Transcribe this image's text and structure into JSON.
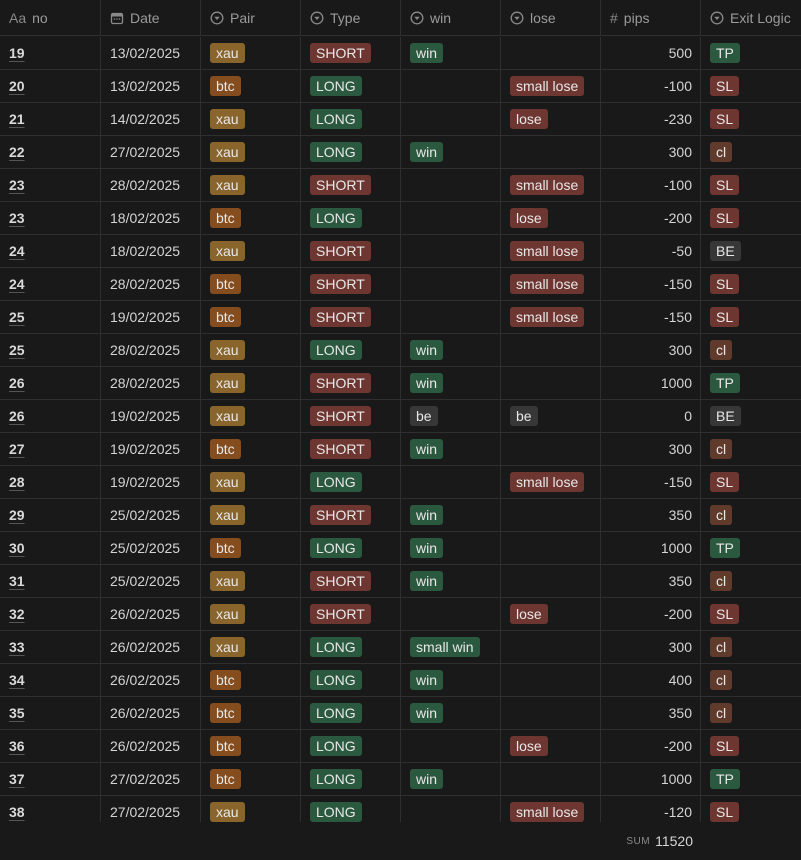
{
  "columns": [
    {
      "icon": "Aa",
      "name": "no"
    },
    {
      "name": "Date"
    },
    {
      "name": "Pair"
    },
    {
      "name": "Type"
    },
    {
      "name": "win"
    },
    {
      "name": "lose"
    },
    {
      "icon": "#",
      "name": "pips"
    },
    {
      "name": "Exit Logic"
    }
  ],
  "rows": [
    [
      "19",
      "13/02/2025",
      "xau",
      "SHORT",
      "win",
      null,
      500,
      "TP"
    ],
    [
      "20",
      "13/02/2025",
      "btc",
      "LONG",
      null,
      "small lose",
      -100,
      "SL"
    ],
    [
      "21",
      "14/02/2025",
      "xau",
      "LONG",
      null,
      "lose",
      -230,
      "SL"
    ],
    [
      "22",
      "27/02/2025",
      "xau",
      "LONG",
      "win",
      null,
      300,
      "cl"
    ],
    [
      "23",
      "28/02/2025",
      "xau",
      "SHORT",
      null,
      "small lose",
      -100,
      "SL"
    ],
    [
      "23",
      "18/02/2025",
      "btc",
      "LONG",
      null,
      "lose",
      -200,
      "SL"
    ],
    [
      "24",
      "18/02/2025",
      "xau",
      "SHORT",
      null,
      "small lose",
      -50,
      "BE"
    ],
    [
      "24",
      "28/02/2025",
      "btc",
      "SHORT",
      null,
      "small lose",
      -150,
      "SL"
    ],
    [
      "25",
      "19/02/2025",
      "btc",
      "SHORT",
      null,
      "small lose",
      -150,
      "SL"
    ],
    [
      "25",
      "28/02/2025",
      "xau",
      "LONG",
      "win",
      null,
      300,
      "cl"
    ],
    [
      "26",
      "28/02/2025",
      "xau",
      "SHORT",
      "win",
      null,
      1000,
      "TP"
    ],
    [
      "26",
      "19/02/2025",
      "xau",
      "SHORT",
      "be",
      "be",
      0,
      "BE"
    ],
    [
      "27",
      "19/02/2025",
      "btc",
      "SHORT",
      "win",
      null,
      300,
      "cl"
    ],
    [
      "28",
      "19/02/2025",
      "xau",
      "LONG",
      null,
      "small lose",
      -150,
      "SL"
    ],
    [
      "29",
      "25/02/2025",
      "xau",
      "SHORT",
      "win",
      null,
      350,
      "cl"
    ],
    [
      "30",
      "25/02/2025",
      "btc",
      "LONG",
      "win",
      null,
      1000,
      "TP"
    ],
    [
      "31",
      "25/02/2025",
      "xau",
      "SHORT",
      "win",
      null,
      350,
      "cl"
    ],
    [
      "32",
      "26/02/2025",
      "xau",
      "SHORT",
      null,
      "lose",
      -200,
      "SL"
    ],
    [
      "33",
      "26/02/2025",
      "xau",
      "LONG",
      "small win",
      null,
      300,
      "cl"
    ],
    [
      "34",
      "26/02/2025",
      "btc",
      "LONG",
      "win",
      null,
      400,
      "cl"
    ],
    [
      "35",
      "26/02/2025",
      "btc",
      "LONG",
      "win",
      null,
      350,
      "cl"
    ],
    [
      "36",
      "26/02/2025",
      "btc",
      "LONG",
      null,
      "lose",
      -200,
      "SL"
    ],
    [
      "37",
      "27/02/2025",
      "btc",
      "LONG",
      "win",
      null,
      1000,
      "TP"
    ],
    [
      "38",
      "27/02/2025",
      "xau",
      "LONG",
      null,
      "small lose",
      -120,
      "SL"
    ]
  ],
  "tag_colors": {
    "xau": "#89642b",
    "btc": "#854c1d",
    "SHORT": "#6e3630",
    "LONG": "#2b593f",
    "win": "#2b593f",
    "small win": "#2b593f",
    "lose": "#6e3630",
    "small lose": "#6e3630",
    "be": "#373737",
    "TP": "#2b593f",
    "SL": "#6e3630",
    "cl": "#603b2c",
    "BE": "#373737"
  },
  "footer": {
    "label": "SUM",
    "value": 11520
  }
}
